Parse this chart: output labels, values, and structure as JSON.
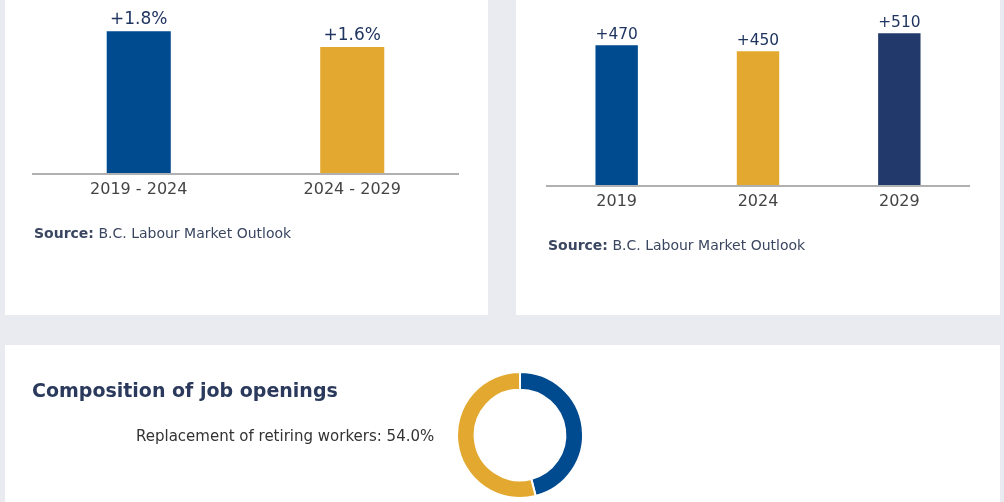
{
  "chart_data": [
    {
      "type": "bar",
      "categories": [
        "2019 - 2024",
        "2024 - 2029"
      ],
      "values": [
        1.8,
        1.6
      ],
      "value_labels": [
        "+1.8%",
        "+1.6%"
      ],
      "colors": [
        "#004a8f",
        "#e3a82f"
      ],
      "annotations": [
        "Source: B.C. Labour Market Outlook"
      ],
      "tick_labels": "x"
    },
    {
      "type": "bar",
      "categories": [
        "2019",
        "2024",
        "2029"
      ],
      "values": [
        470,
        450,
        510
      ],
      "value_labels": [
        "+470",
        "+450",
        "+510"
      ],
      "colors": [
        "#004a8f",
        "#e3a82f",
        "#223a6b"
      ],
      "annotations": [
        "Source: B.C. Labour Market Outlook"
      ],
      "tick_labels": "x"
    },
    {
      "type": "donut",
      "title": "Composition of job openings",
      "categories": [
        null,
        "Replacement of retiring workers"
      ],
      "values": [
        46.0,
        54.0
      ],
      "value_labels": [
        null,
        "54.0%"
      ],
      "colors": [
        "#004a8f",
        "#e3a82f"
      ]
    }
  ]
}
